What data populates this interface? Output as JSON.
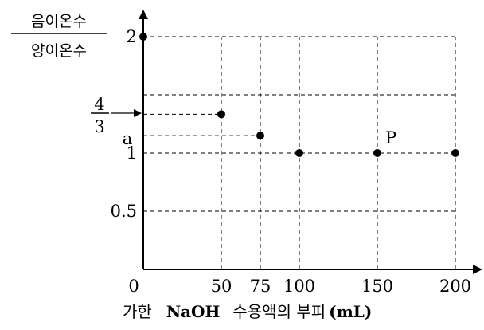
{
  "chart_data": {
    "type": "scatter",
    "title": "",
    "ylabel": {
      "numerator": "음이온수",
      "denominator": "양이온수"
    },
    "xlabel": {
      "prefix": "가한",
      "reagent": "NaOH",
      "middle": "수용액의 부피",
      "unit": "(mL)"
    },
    "xlim": [
      0,
      200
    ],
    "ylim": [
      0,
      2
    ],
    "x_ticks": [
      {
        "value": 0,
        "label": "0"
      },
      {
        "value": 50,
        "label": "50"
      },
      {
        "value": 75,
        "label": "75"
      },
      {
        "value": 100,
        "label": "100"
      },
      {
        "value": 150,
        "label": "150"
      },
      {
        "value": 200,
        "label": "200"
      }
    ],
    "y_ticks": [
      {
        "value": 2,
        "label": "2"
      },
      {
        "value": 1,
        "label": "1"
      },
      {
        "value": 0.5,
        "label": "0.5"
      }
    ],
    "y_fraction_marker": {
      "value": 1.3333,
      "numerator": "4",
      "denominator": "3"
    },
    "y_symbol_marker": {
      "value": 1.15,
      "label": "a"
    },
    "points": [
      {
        "x": 0,
        "y": 2
      },
      {
        "x": 50,
        "y": 1.3333
      },
      {
        "x": 75,
        "y": 1.15
      },
      {
        "x": 100,
        "y": 1
      },
      {
        "x": 150,
        "y": 1,
        "label": "P"
      },
      {
        "x": 200,
        "y": 1
      }
    ],
    "grid": true
  }
}
